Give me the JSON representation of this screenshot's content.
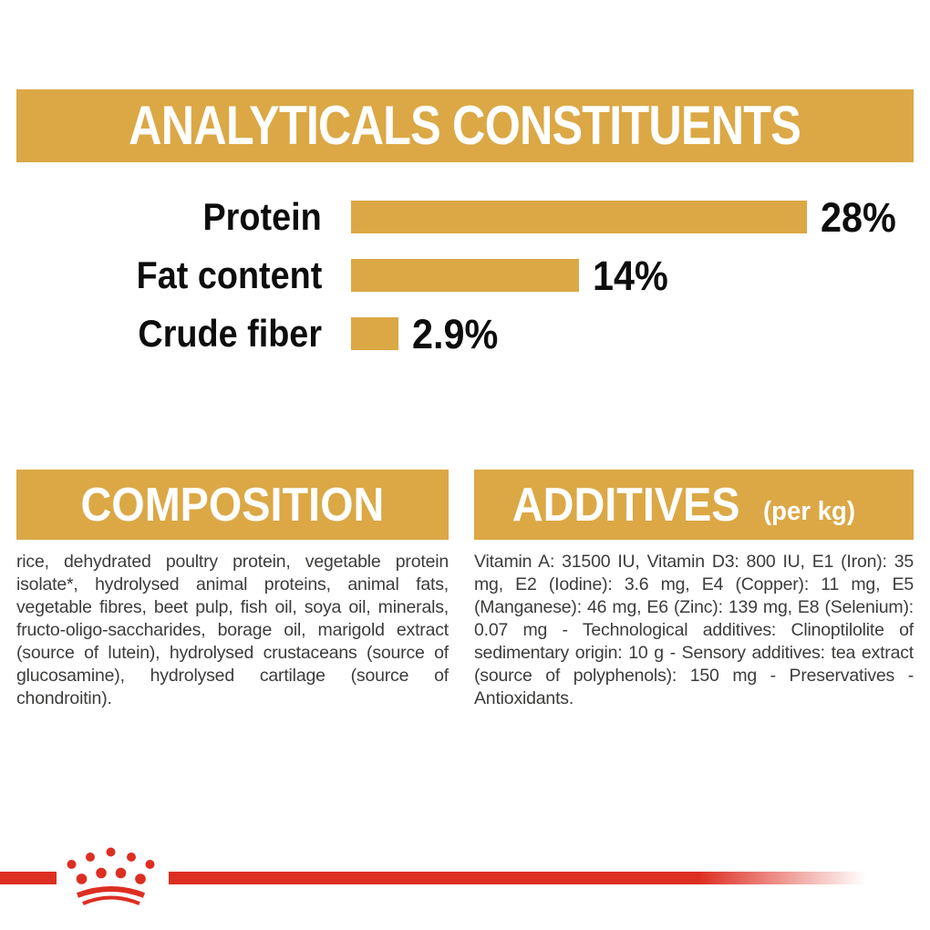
{
  "colors": {
    "gold": "#DBA845",
    "red": "#DD2E22",
    "text": "#3C3C3B",
    "black": "#0D0D0D"
  },
  "header": {
    "title": "ANALYTICALS CONSTITUENTS"
  },
  "chart_data": {
    "type": "bar",
    "orientation": "horizontal",
    "title": "ANALYTICALS CONSTITUENTS",
    "categories": [
      "Protein",
      "Fat content",
      "Crude fiber"
    ],
    "values": [
      28,
      14,
      2.9
    ],
    "value_labels": [
      "28%",
      "14%",
      "2.9%"
    ],
    "xlim": [
      0,
      28
    ],
    "bar_color": "#DBA845",
    "grid": false,
    "legend": false
  },
  "composition": {
    "title": "COMPOSITION",
    "body": "rice, dehydrated poultry protein, vegetable protein isolate*, hydrolysed animal proteins, animal fats, vegetable fibres, beet pulp, fish oil, soya oil, minerals, fructo-oligo-saccharides, borage oil, marigold extract (source of lutein), hydrolysed crustaceans (source of glucosamine), hydrolysed cartilage (source of chondroitin)."
  },
  "additives": {
    "title": "ADDITIVES",
    "unit": "(per kg)",
    "body": "Vitamin A: 31500 IU, Vitamin D3: 800 IU, E1 (Iron): 35 mg, E2 (Iodine): 3.6 mg, E4 (Copper): 11 mg, E5 (Manganese): 46 mg, E6 (Zinc): 139 mg, E8 (Selenium): 0.07 mg - Technological additives: Clinoptilolite of sedimentary origin: 10 g - Sensory additives: tea extract (source of polyphenols): 150 mg - Preservatives - Antioxidants."
  },
  "footer": {
    "logo": "royal-canin-crown"
  }
}
